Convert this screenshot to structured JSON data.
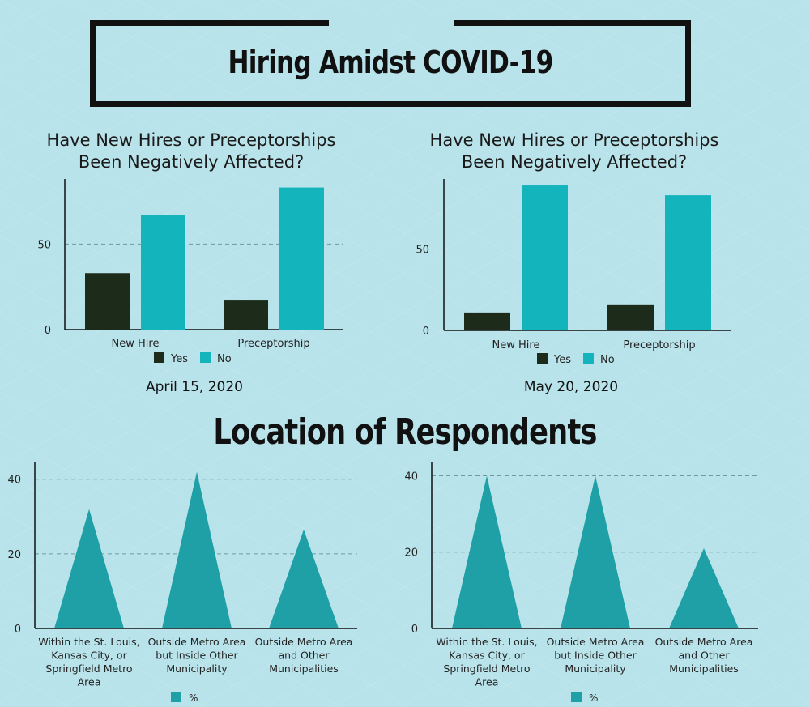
{
  "header": {
    "title": "Hiring Amidst COVID-19"
  },
  "section": {
    "title": "Location of Respondents"
  },
  "chart_data": [
    {
      "type": "bar",
      "title": "Have New Hires or Preceptorships Been Negatively Affected?",
      "date": "April 15, 2020",
      "categories": [
        "New Hire",
        "Preceptorship"
      ],
      "series": [
        {
          "name": "Yes",
          "color": "#1c2b1a",
          "values": [
            33,
            17
          ]
        },
        {
          "name": "No",
          "color": "#14b4bd",
          "values": [
            67,
            83
          ]
        }
      ],
      "ylim": [
        0,
        88
      ],
      "yticks": [
        0,
        50
      ],
      "xlabel": "",
      "ylabel": "",
      "grid": "dashed at 50",
      "legend": "bottom"
    },
    {
      "type": "bar",
      "title": "Have New Hires or Preceptorships Been Negatively Affected?",
      "date": "May 20, 2020",
      "categories": [
        "New Hire",
        "Preceptorship"
      ],
      "series": [
        {
          "name": "Yes",
          "color": "#1c2b1a",
          "values": [
            11,
            16
          ]
        },
        {
          "name": "No",
          "color": "#14b4bd",
          "values": [
            89,
            83
          ]
        }
      ],
      "ylim": [
        0,
        93
      ],
      "yticks": [
        0,
        50
      ],
      "xlabel": "",
      "ylabel": "",
      "grid": "dashed at 50",
      "legend": "bottom"
    },
    {
      "type": "area",
      "categories": [
        [
          "Within the St. Louis,",
          "Kansas City, or",
          "Springfield Metro",
          "Area"
        ],
        [
          "Outside Metro Area",
          "but Inside Other",
          "Municipality"
        ],
        [
          "Outside Metro Area",
          "and Other",
          "Municipalities"
        ]
      ],
      "series": [
        {
          "name": "%",
          "color": "#1f9fa6",
          "values": [
            32,
            42,
            26.5
          ]
        }
      ],
      "ylim": [
        0,
        44.5
      ],
      "yticks": [
        0,
        20,
        40
      ],
      "xlabel": "",
      "ylabel": "",
      "grid": "dashed at 20 and 40",
      "legend": "bottom"
    },
    {
      "type": "area",
      "categories": [
        [
          "Within the St. Louis,",
          "Kansas City, or",
          "Springfield Metro",
          "Area"
        ],
        [
          "Outside Metro Area",
          "but Inside Other",
          "Municipality"
        ],
        [
          "Outside Metro Area",
          "and Other",
          "Municipalities"
        ]
      ],
      "series": [
        {
          "name": "%",
          "color": "#1f9fa6",
          "values": [
            40,
            40,
            21
          ]
        }
      ],
      "ylim": [
        0,
        43.5
      ],
      "yticks": [
        0,
        20,
        40
      ],
      "xlabel": "",
      "ylabel": "",
      "grid": "dashed at 20 and 40",
      "legend": "bottom"
    }
  ]
}
